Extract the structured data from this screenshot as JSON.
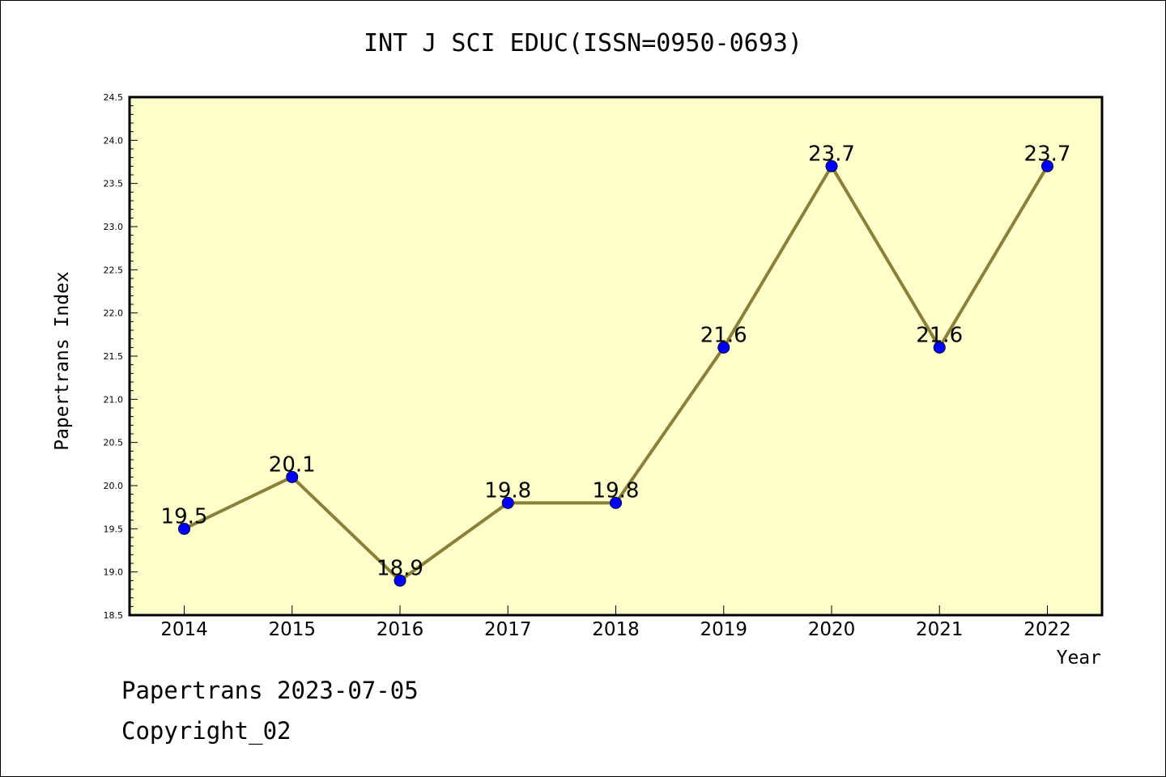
{
  "title": "INT J SCI EDUC(ISSN=0950-0693)",
  "footer": {
    "line1": "Papertrans 2023-07-05",
    "line2": "Copyright_02"
  },
  "colors": {
    "plot_background": "#ffffcc",
    "line": "#8b8038",
    "marker": "#0000ff"
  },
  "chart_data": {
    "type": "line",
    "title": "INT J SCI EDUC(ISSN=0950-0693)",
    "xlabel": "Year",
    "ylabel": "Papertrans Index",
    "categories": [
      "2014",
      "2015",
      "2016",
      "2017",
      "2018",
      "2019",
      "2020",
      "2021",
      "2022"
    ],
    "series": [
      {
        "values": [
          19.5,
          20.1,
          18.9,
          19.8,
          19.8,
          21.6,
          23.7,
          21.6,
          23.7
        ],
        "labels": [
          "19.5",
          "20.1",
          "18.9",
          "19.8",
          "19.8",
          "21.6",
          "23.7",
          "21.6",
          "23.7"
        ]
      }
    ],
    "ylim": [
      18.5,
      24.5
    ],
    "yticks": [
      "18.5",
      "19.0",
      "19.5",
      "20.0",
      "20.5",
      "21.0",
      "21.5",
      "22.0",
      "22.5",
      "23.0",
      "23.5",
      "24.0",
      "24.5"
    ],
    "grid": false,
    "legend": "none",
    "marker": "circle"
  }
}
